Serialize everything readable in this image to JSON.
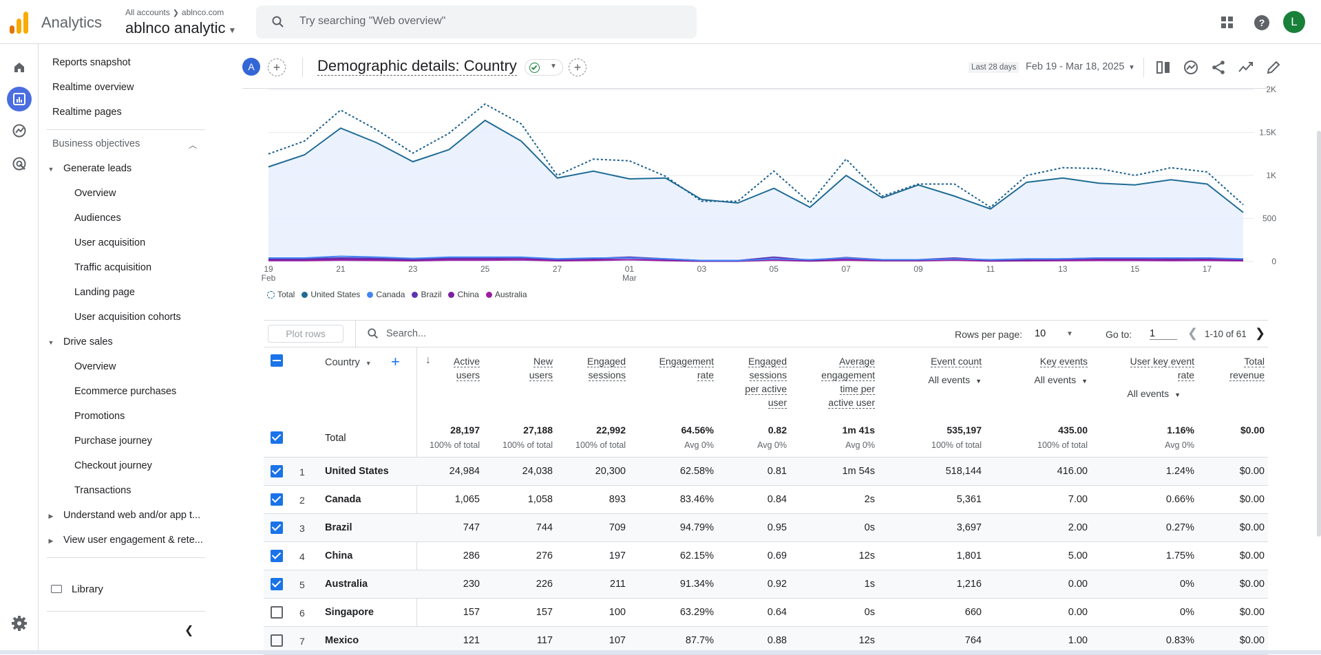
{
  "colors": {
    "accent": "#1a73e8",
    "brand_orange": "#f9ab00",
    "brand_orange_dark": "#e37400",
    "total_series": "#1a5f8c",
    "us_series": "#1f6b95",
    "canada": "#4285f4",
    "brazil": "#5e35b1",
    "china": "#7b1fa2",
    "australia": "#9c1ea0"
  },
  "topbar": {
    "app_name": "Analytics",
    "breadcrumb_all": "All accounts",
    "breadcrumb_site": "ablnco.com",
    "account_name": "ablnco analytic",
    "search_placeholder": "Try searching \"Web overview\"",
    "help_glyph": "?",
    "avatar_letter": "L",
    "icons": [
      "apps-grid-icon",
      "help-icon"
    ]
  },
  "rail": {
    "icons": [
      "home-icon",
      "reports-icon",
      "explore-icon",
      "advertising-icon",
      "settings-icon"
    ]
  },
  "sidebar": {
    "top_items": [
      "Reports snapshot",
      "Realtime overview",
      "Realtime pages"
    ],
    "section": "Business objectives",
    "groups": [
      {
        "label": "Generate leads",
        "items": [
          "Overview",
          "Audiences",
          "User acquisition",
          "Traffic acquisition",
          "Landing page",
          "User acquisition cohorts"
        ]
      },
      {
        "label": "Drive sales",
        "items": [
          "Overview",
          "Ecommerce purchases",
          "Promotions",
          "Purchase journey",
          "Checkout journey",
          "Transactions"
        ]
      },
      {
        "label": "Understand web and/or app t...",
        "items": []
      },
      {
        "label": "View user engagement & rete...",
        "items": []
      }
    ],
    "library": "Library"
  },
  "header": {
    "segment_chip": "A",
    "title": "Demographic details: Country",
    "date_label": "Last 28 days",
    "date_range": "Feb 19 - Mar 18, 2025",
    "icons": [
      "compare-icon",
      "insights-icon",
      "share-icon",
      "trend-icon",
      "edit-icon"
    ]
  },
  "chart_data": {
    "type": "area",
    "x": [
      "Feb 19",
      "Feb 20",
      "Feb 21",
      "Feb 22",
      "Feb 23",
      "Feb 24",
      "Feb 25",
      "Feb 26",
      "Feb 27",
      "Feb 28",
      "Mar 01",
      "Mar 02",
      "Mar 03",
      "Mar 04",
      "Mar 05",
      "Mar 06",
      "Mar 07",
      "Mar 08",
      "Mar 09",
      "Mar 10",
      "Mar 11",
      "Mar 12",
      "Mar 13",
      "Mar 14",
      "Mar 15",
      "Mar 16",
      "Mar 17",
      "Mar 18"
    ],
    "x_tick_labels": [
      "19",
      "21",
      "23",
      "25",
      "27",
      "01",
      "03",
      "05",
      "07",
      "09",
      "11",
      "13",
      "15",
      "17"
    ],
    "x_tick_sublabels": {
      "19": "Feb",
      "01": "Mar"
    },
    "y_tick_labels": [
      "2K",
      "1.5K",
      "1K",
      "500",
      "0"
    ],
    "ylim": [
      0,
      2000
    ],
    "series": [
      {
        "name": "Total",
        "style": "dotted",
        "values": [
          1250,
          1400,
          1760,
          1530,
          1260,
          1490,
          1830,
          1600,
          1000,
          1190,
          1170,
          990,
          700,
          700,
          1050,
          680,
          1190,
          760,
          900,
          900,
          630,
          1000,
          1090,
          1080,
          1000,
          1090,
          1040,
          660
        ]
      },
      {
        "name": "United States",
        "style": "area",
        "values": [
          1100,
          1240,
          1550,
          1380,
          1160,
          1300,
          1640,
          1400,
          970,
          1050,
          960,
          970,
          720,
          680,
          850,
          630,
          1000,
          740,
          890,
          760,
          610,
          920,
          970,
          910,
          890,
          950,
          900,
          570
        ]
      },
      {
        "name": "Canada",
        "style": "line",
        "values": [
          40,
          40,
          60,
          50,
          35,
          50,
          50,
          50,
          30,
          40,
          40,
          30,
          10,
          10,
          30,
          20,
          40,
          20,
          20,
          30,
          20,
          30,
          30,
          40,
          40,
          40,
          40,
          30
        ]
      },
      {
        "name": "Brazil",
        "style": "line",
        "values": [
          30,
          30,
          40,
          35,
          25,
          40,
          40,
          45,
          20,
          35,
          50,
          30,
          10,
          10,
          50,
          15,
          45,
          20,
          20,
          40,
          15,
          20,
          30,
          40,
          40,
          35,
          40,
          25
        ]
      },
      {
        "name": "China",
        "style": "line",
        "values": [
          20,
          20,
          30,
          25,
          15,
          30,
          30,
          35,
          15,
          25,
          40,
          20,
          5,
          5,
          30,
          10,
          30,
          15,
          15,
          30,
          10,
          15,
          20,
          25,
          25,
          20,
          25,
          15
        ]
      },
      {
        "name": "Australia",
        "style": "line",
        "values": [
          10,
          10,
          15,
          12,
          8,
          15,
          15,
          18,
          8,
          12,
          20,
          10,
          3,
          3,
          15,
          5,
          15,
          8,
          8,
          15,
          5,
          8,
          10,
          12,
          12,
          10,
          12,
          8
        ]
      }
    ]
  },
  "table": {
    "plot_rows": "Plot rows",
    "search_placeholder": "Search...",
    "rows_per_page_label": "Rows per page:",
    "rows_per_page": "10",
    "goto_label": "Go to:",
    "goto_value": "1",
    "page_range": "1-10 of 61",
    "dimension": "Country",
    "columns": [
      {
        "l1": "Active",
        "l2": "users",
        "l3": "",
        "l4": ""
      },
      {
        "l1": "New",
        "l2": "users",
        "l3": "",
        "l4": ""
      },
      {
        "l1": "Engaged",
        "l2": "sessions",
        "l3": "",
        "l4": ""
      },
      {
        "l1": "Engagement",
        "l2": "rate",
        "l3": "",
        "l4": ""
      },
      {
        "l1": "Engaged",
        "l2": "sessions",
        "l3": "per active",
        "l4": "user"
      },
      {
        "l1": "Average",
        "l2": "engagement",
        "l3": "time per",
        "l4": "active user"
      },
      {
        "l1": "Event count",
        "l2": "",
        "l3": "",
        "l4": ""
      },
      {
        "l1": "Key events",
        "l2": "",
        "l3": "",
        "l4": ""
      },
      {
        "l1": "User key event",
        "l2": "rate",
        "l3": "",
        "l4": ""
      },
      {
        "l1": "Total",
        "l2": "revenue",
        "l3": "",
        "l4": ""
      }
    ],
    "filter_label": "All events",
    "totals_label": "Total",
    "totals": [
      "28,197",
      "27,188",
      "22,992",
      "64.56%",
      "0.82",
      "1m 41s",
      "535,197",
      "435.00",
      "1.16%",
      "$0.00"
    ],
    "totals_sub": [
      "100% of total",
      "100% of total",
      "100% of total",
      "Avg 0%",
      "Avg 0%",
      "Avg 0%",
      "100% of total",
      "100% of total",
      "Avg 0%",
      ""
    ],
    "rows": [
      {
        "n": "1",
        "country": "United States",
        "checked": true,
        "v": [
          "24,984",
          "24,038",
          "20,300",
          "62.58%",
          "0.81",
          "1m 54s",
          "518,144",
          "416.00",
          "1.24%",
          "$0.00"
        ]
      },
      {
        "n": "2",
        "country": "Canada",
        "checked": true,
        "v": [
          "1,065",
          "1,058",
          "893",
          "83.46%",
          "0.84",
          "2s",
          "5,361",
          "7.00",
          "0.66%",
          "$0.00"
        ]
      },
      {
        "n": "3",
        "country": "Brazil",
        "checked": true,
        "v": [
          "747",
          "744",
          "709",
          "94.79%",
          "0.95",
          "0s",
          "3,697",
          "2.00",
          "0.27%",
          "$0.00"
        ]
      },
      {
        "n": "4",
        "country": "China",
        "checked": true,
        "v": [
          "286",
          "276",
          "197",
          "62.15%",
          "0.69",
          "12s",
          "1,801",
          "5.00",
          "1.75%",
          "$0.00"
        ]
      },
      {
        "n": "5",
        "country": "Australia",
        "checked": true,
        "v": [
          "230",
          "226",
          "211",
          "91.34%",
          "0.92",
          "1s",
          "1,216",
          "0.00",
          "0%",
          "$0.00"
        ]
      },
      {
        "n": "6",
        "country": "Singapore",
        "checked": false,
        "v": [
          "157",
          "157",
          "100",
          "63.29%",
          "0.64",
          "0s",
          "660",
          "0.00",
          "0%",
          "$0.00"
        ]
      },
      {
        "n": "7",
        "country": "Mexico",
        "checked": false,
        "v": [
          "121",
          "117",
          "107",
          "87.7%",
          "0.88",
          "12s",
          "764",
          "1.00",
          "0.83%",
          "$0.00"
        ]
      }
    ]
  }
}
